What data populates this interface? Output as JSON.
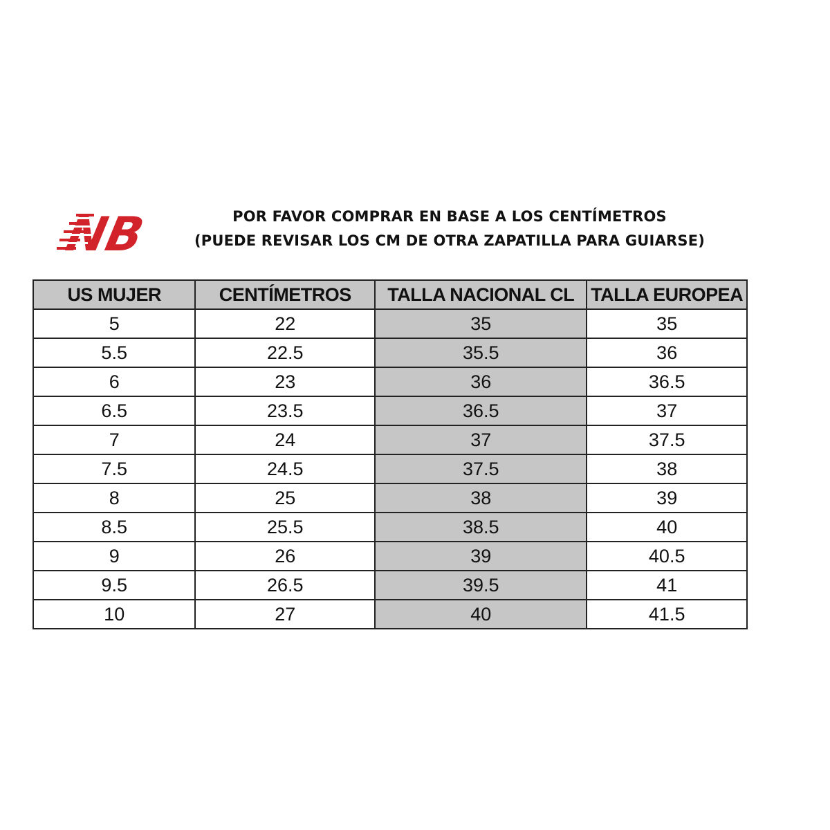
{
  "logo": {
    "text": "NB",
    "color": "#d2232a"
  },
  "title": {
    "line1": "POR FAVOR COMPRAR EN BASE A LOS CENTÍMETROS",
    "line2": "(PUEDE REVISAR LOS CM DE OTRA ZAPATILLA PARA GUIARSE)"
  },
  "table": {
    "headers": [
      "US MUJER",
      "CENTÍMETROS",
      "TALLA NACIONAL CL",
      "TALLA EUROPEA"
    ],
    "rows": [
      [
        "5",
        "22",
        "35",
        "35"
      ],
      [
        "5.5",
        "22.5",
        "35.5",
        "36"
      ],
      [
        "6",
        "23",
        "36",
        "36.5"
      ],
      [
        "6.5",
        "23.5",
        "36.5",
        "37"
      ],
      [
        "7",
        "24",
        "37",
        "37.5"
      ],
      [
        "7.5",
        "24.5",
        "37.5",
        "38"
      ],
      [
        "8",
        "25",
        "38",
        "39"
      ],
      [
        "8.5",
        "25.5",
        "38.5",
        "40"
      ],
      [
        "9",
        "26",
        "39",
        "40.5"
      ],
      [
        "9.5",
        "26.5",
        "39.5",
        "41"
      ],
      [
        "10",
        "27",
        "40",
        "41.5"
      ]
    ],
    "highlight_color": "#c6c6c6"
  }
}
